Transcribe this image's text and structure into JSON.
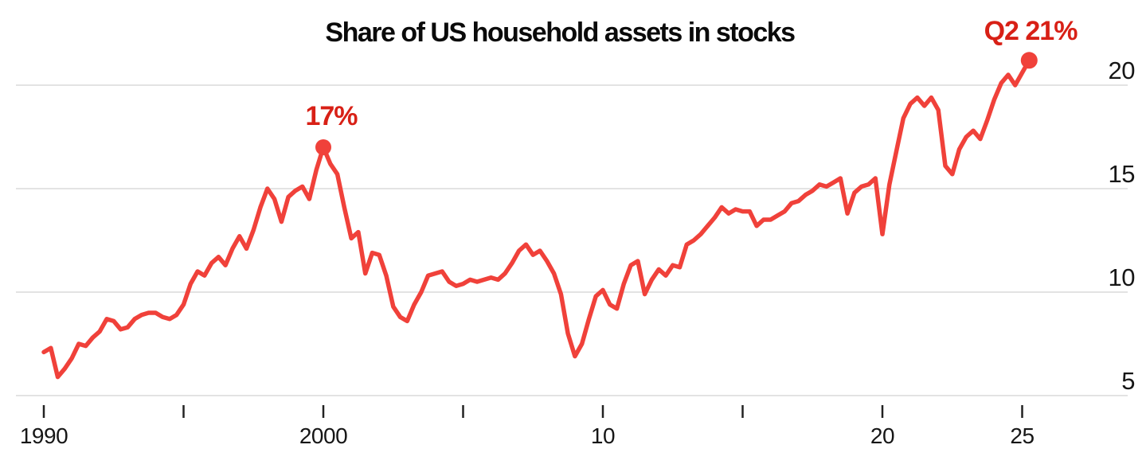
{
  "title": "Share of US household assets in stocks",
  "annotations": {
    "peak_2000": {
      "label": "17%",
      "x_year": 2000.0,
      "value": 17.0
    },
    "latest": {
      "label": "Q2 21%",
      "x_year": 2025.25,
      "value": 21.2
    }
  },
  "colors": {
    "line": "#f0413a",
    "marker": "#f0413a",
    "annotation_text": "#d82016",
    "grid": "#e3e3e3",
    "axis_text": "#161616",
    "tick": "#222222",
    "background": "#ffffff"
  },
  "chart_data": {
    "type": "line",
    "title": "Share of US household assets in stocks",
    "xlabel": "",
    "ylabel": "",
    "frequency": "quarterly",
    "x_start": 1990.0,
    "x_step": 0.25,
    "xlim": [
      1990.0,
      2025.5
    ],
    "ylim": [
      5,
      21.5
    ],
    "grid": "horizontal",
    "legend": "none",
    "y_ticks": [
      5,
      10,
      15,
      20
    ],
    "x_ticks": [
      {
        "t": 1990,
        "label": "1990"
      },
      {
        "t": 1995,
        "label": ""
      },
      {
        "t": 2000,
        "label": "2000"
      },
      {
        "t": 2005,
        "label": ""
      },
      {
        "t": 2010,
        "label": "10"
      },
      {
        "t": 2015,
        "label": ""
      },
      {
        "t": 2020,
        "label": "20"
      },
      {
        "t": 2025,
        "label": "25"
      }
    ],
    "values": [
      7.1,
      7.3,
      5.9,
      6.3,
      6.8,
      7.5,
      7.4,
      7.8,
      8.1,
      8.7,
      8.6,
      8.2,
      8.3,
      8.7,
      8.9,
      9.0,
      9.0,
      8.8,
      8.7,
      8.9,
      9.4,
      10.4,
      11.0,
      10.8,
      11.4,
      11.7,
      11.3,
      12.1,
      12.7,
      12.1,
      13.0,
      14.1,
      15.0,
      14.5,
      13.4,
      14.6,
      14.9,
      15.1,
      14.5,
      15.9,
      17.0,
      16.2,
      15.7,
      14.1,
      12.6,
      12.9,
      10.9,
      11.9,
      11.8,
      10.8,
      9.3,
      8.8,
      8.6,
      9.4,
      10.0,
      10.8,
      10.9,
      11.0,
      10.5,
      10.3,
      10.4,
      10.6,
      10.5,
      10.6,
      10.7,
      10.6,
      10.9,
      11.4,
      12.0,
      12.3,
      11.8,
      12.0,
      11.5,
      10.9,
      9.9,
      8.0,
      6.9,
      7.5,
      8.7,
      9.8,
      10.1,
      9.4,
      9.2,
      10.4,
      11.3,
      11.5,
      9.9,
      10.6,
      11.1,
      10.8,
      11.3,
      11.2,
      12.3,
      12.5,
      12.8,
      13.2,
      13.6,
      14.1,
      13.8,
      14.0,
      13.9,
      13.9,
      13.2,
      13.5,
      13.5,
      13.7,
      13.9,
      14.3,
      14.4,
      14.7,
      14.9,
      15.2,
      15.1,
      15.3,
      15.5,
      13.8,
      14.8,
      15.1,
      15.2,
      15.5,
      12.8,
      15.2,
      16.8,
      18.4,
      19.1,
      19.4,
      19.0,
      19.4,
      18.8,
      16.1,
      15.7,
      16.9,
      17.5,
      17.8,
      17.4,
      18.3,
      19.3,
      20.1,
      20.5,
      20.0,
      20.6,
      21.2
    ]
  }
}
